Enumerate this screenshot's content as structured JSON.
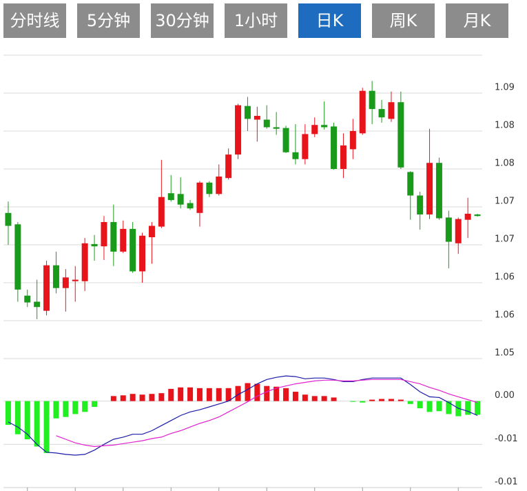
{
  "tabs": [
    "分时线",
    "5分钟",
    "30分钟",
    "1小时",
    "日K",
    "周K",
    "月K"
  ],
  "active_tab": 4,
  "chart_data": [
    {
      "type": "candlestick",
      "up_color": "#e8141c",
      "down_color": "#1a9a1a",
      "grid": true,
      "ylim": [
        1.0543,
        1.0943
      ],
      "yticks": [
        {
          "value": 1.0893,
          "label": "1.09"
        },
        {
          "value": 1.0843,
          "label": "1.08"
        },
        {
          "value": 1.0793,
          "label": "1.08"
        },
        {
          "value": 1.0743,
          "label": "1.07"
        },
        {
          "value": 1.0693,
          "label": "1.07"
        },
        {
          "value": 1.0643,
          "label": "1.06"
        },
        {
          "value": 1.0593,
          "label": "1.06"
        },
        {
          "value": 1.0543,
          "label": "1.05"
        }
      ],
      "open": [
        1.0735,
        1.072,
        1.0626,
        1.0618,
        1.0606,
        1.0666,
        1.0636,
        1.0645,
        1.0645,
        1.0694,
        1.0691,
        1.0723,
        1.0684,
        1.0714,
        1.0658,
        1.0703,
        1.0717,
        1.0761,
        1.076,
        1.0748,
        1.0735,
        1.0775,
        1.076,
        1.0781,
        1.0812,
        1.0876,
        1.0858,
        1.0858,
        1.0848,
        1.0847,
        1.0815,
        1.0806,
        1.0839,
        1.0851,
        1.0849,
        1.0793,
        1.0819,
        1.084,
        1.0896,
        1.0872,
        1.0859,
        1.0881,
        1.0789,
        1.0758,
        1.0733,
        1.0801,
        1.0729,
        1.0695,
        1.0726,
        1.0733
      ],
      "high": [
        1.075,
        1.0723,
        1.0634,
        1.0647,
        1.0672,
        1.0684,
        1.0661,
        1.0665,
        1.0702,
        1.0706,
        1.0731,
        1.0746,
        1.0725,
        1.0723,
        1.0709,
        1.0723,
        1.0805,
        1.0785,
        1.0782,
        1.0752,
        1.0777,
        1.0777,
        1.0799,
        1.082,
        1.0879,
        1.0888,
        1.0875,
        1.0877,
        1.0868,
        1.085,
        1.0852,
        1.0852,
        1.0861,
        1.0882,
        1.0854,
        1.084,
        1.0859,
        1.09,
        1.0909,
        1.0884,
        1.0895,
        1.0895,
        1.079,
        1.0763,
        1.0846,
        1.0808,
        1.0738,
        1.0729,
        1.0755,
        1.0734
      ],
      "low": [
        1.0693,
        1.0618,
        1.0611,
        1.0595,
        1.06,
        1.0629,
        1.0605,
        1.0618,
        1.0632,
        1.0672,
        1.0673,
        1.0665,
        1.0682,
        1.0656,
        1.0643,
        1.0668,
        1.0715,
        1.075,
        1.0741,
        1.0739,
        1.0717,
        1.0756,
        1.0758,
        1.0779,
        1.0806,
        1.0843,
        1.0829,
        1.0846,
        1.0838,
        1.0814,
        1.0799,
        1.0799,
        1.0835,
        1.0845,
        1.0792,
        1.0781,
        1.0806,
        1.0838,
        1.0852,
        1.0854,
        1.0855,
        1.0793,
        1.0726,
        1.0713,
        1.0727,
        1.0726,
        1.0662,
        1.0681,
        1.0702,
        1.073
      ],
      "close": [
        1.0718,
        1.0634,
        1.0617,
        1.0611,
        1.0666,
        1.0636,
        1.065,
        1.0647,
        1.0695,
        1.0691,
        1.0723,
        1.0684,
        1.0714,
        1.0658,
        1.0705,
        1.0718,
        1.0756,
        1.0752,
        1.0746,
        1.0741,
        1.0775,
        1.076,
        1.0783,
        1.0812,
        1.0877,
        1.0859,
        1.0863,
        1.0848,
        1.0846,
        1.0815,
        1.0806,
        1.0839,
        1.0851,
        1.0848,
        1.0793,
        1.0824,
        1.0843,
        1.0896,
        1.0872,
        1.0861,
        1.0881,
        1.0795,
        1.0758,
        1.0733,
        1.0801,
        1.0728,
        1.0697,
        1.0727,
        1.0734,
        1.0731
      ]
    },
    {
      "type": "macd",
      "up_color": "#e8141c",
      "down_color": "#22ee22",
      "ylim": [
        -0.012,
        0.0059
      ],
      "yticks": [
        {
          "value": 0,
          "label": "0.00"
        },
        {
          "value": -0.006,
          "label": "-0.01"
        },
        {
          "value": -0.012,
          "label": "-0.01"
        }
      ],
      "histogram": [
        -0.0033,
        -0.0046,
        -0.0053,
        -0.0063,
        -0.0072,
        -0.0024,
        -0.0022,
        -0.0018,
        -0.0015,
        -0.0008,
        0,
        0.0007,
        0.0008,
        0.001,
        0.0009,
        0.001,
        0.0011,
        0.0017,
        0.0019,
        0.0019,
        0.0018,
        0.0018,
        0.0018,
        0.0018,
        0.0021,
        0.0025,
        0.0024,
        0.0021,
        0.002,
        0.0018,
        0.0013,
        0.0009,
        0.0007,
        0.0007,
        0.0005,
        0,
        -0.0001,
        -0.0002,
        0.0002,
        0.0003,
        0.0003,
        0.0002,
        -0.0004,
        -0.001,
        -0.0015,
        -0.0014,
        -0.0018,
        -0.0021,
        -0.0019,
        -0.0019
      ],
      "series": [
        {
          "color": "#1a1aa8",
          "values": [
            -0.0029,
            -0.0036,
            -0.0046,
            -0.006,
            -0.0071,
            -0.0072,
            -0.0074,
            -0.0075,
            -0.0074,
            -0.0068,
            -0.006,
            -0.0053,
            -0.005,
            -0.0046,
            -0.0046,
            -0.0041,
            -0.0034,
            -0.0027,
            -0.002,
            -0.0015,
            -0.0012,
            -0.0008,
            -0.0004,
            0,
            0.0009,
            0.0016,
            0.0024,
            0.003,
            0.0033,
            0.0035,
            0.0034,
            0.0031,
            0.0032,
            0.0032,
            0.003,
            0.0027,
            0.0027,
            0.003,
            0.0032,
            0.0032,
            0.0032,
            0.0032,
            0.0023,
            0.0013,
            0.0006,
            0.0005,
            -0.0002,
            -0.001,
            -0.0014,
            -0.002
          ]
        },
        {
          "color": "#e020d0",
          "values": [
            null,
            null,
            null,
            null,
            null,
            -0.0048,
            -0.0053,
            -0.0058,
            -0.0061,
            -0.0063,
            -0.0062,
            -0.0061,
            -0.0059,
            -0.0057,
            -0.0055,
            -0.0052,
            -0.005,
            -0.0045,
            -0.0041,
            -0.0036,
            -0.0031,
            -0.0027,
            -0.0022,
            -0.0015,
            -0.0008,
            -0.0001,
            0.0007,
            0.0013,
            0.0018,
            0.0021,
            0.0024,
            0.0026,
            0.0028,
            0.0029,
            0.0029,
            0.0028,
            0.0028,
            0.0029,
            0.003,
            0.003,
            0.003,
            0.003,
            0.0027,
            0.0024,
            0.0019,
            0.0015,
            0.001,
            0.0006,
            0.0002,
            -0.0002
          ]
        }
      ]
    }
  ]
}
